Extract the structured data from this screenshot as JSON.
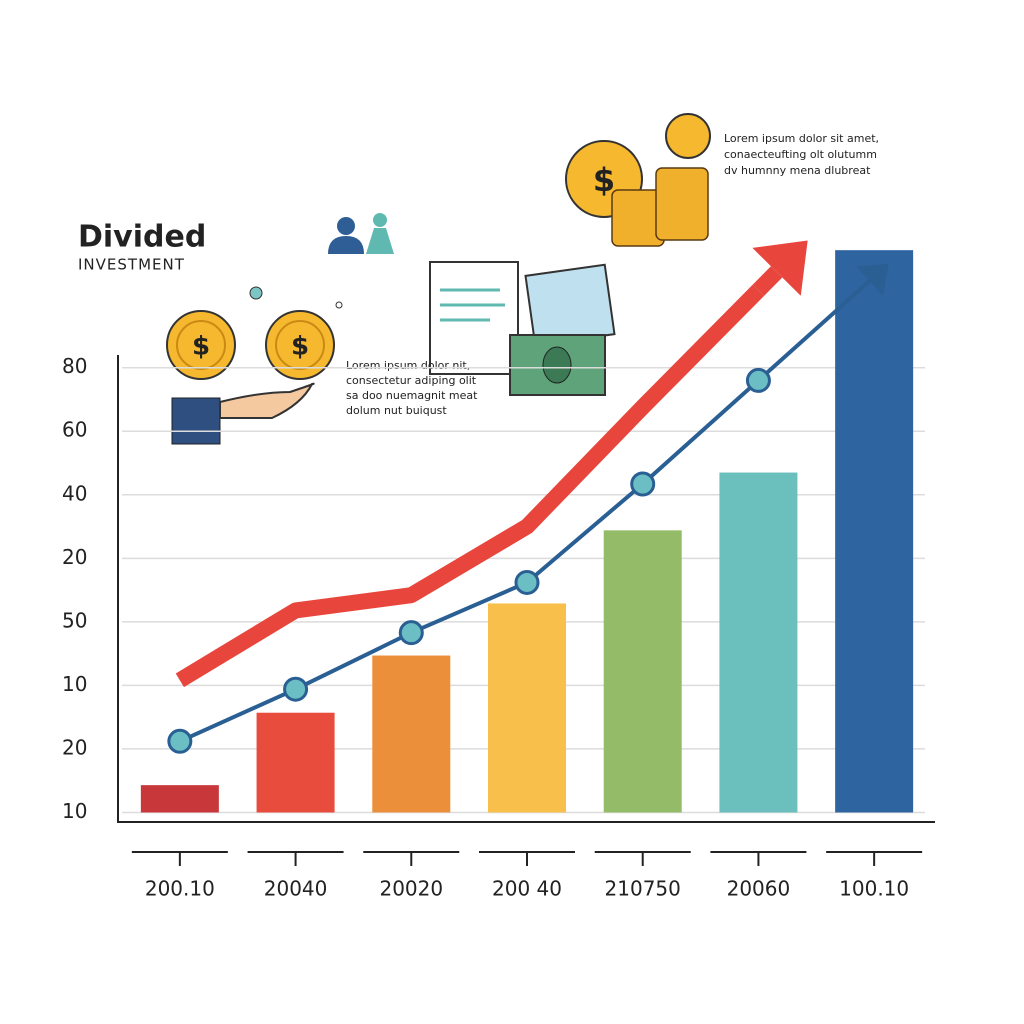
{
  "chart_data": {
    "type": "bar",
    "title": "Divided",
    "subtitle": "INVESTMENT",
    "annotations": [
      {
        "lines": [
          "Lorem ipsum dolor nit,",
          "consectetur adiping olit",
          "sa doo nuemagnit meat",
          "dolum nut buiqust"
        ]
      },
      {
        "lines": [
          "Lorem ipsum dolor sit amet,",
          "conaecteufting olt olutumm",
          "dv humnny mena dlubreat"
        ]
      }
    ],
    "categories": [
      "200.10",
      "20040",
      "20020",
      "200 40",
      "210750",
      "20060",
      "100.10"
    ],
    "values": [
      0.43,
      1.57,
      2.47,
      3.29,
      4.44,
      5.35,
      8.85
    ],
    "colors": [
      "#c8373a",
      "#e84c3d",
      "#ec8f3a",
      "#f8c04a",
      "#93bb68",
      "#6bbfbd",
      "#2e65a0"
    ],
    "lines": [
      {
        "color": "#e8453c",
        "values": [
          2.08,
          3.18,
          3.42,
          4.5,
          6.38,
          8.22,
          null
        ]
      },
      {
        "color": "#2a5f94",
        "values": [
          1.12,
          1.94,
          2.83,
          3.62,
          5.17,
          6.8,
          null
        ]
      }
    ],
    "ylim": [
      -0.15,
      7.2
    ],
    "yticks": [
      {
        "value": 0,
        "label": "10"
      },
      {
        "value": 1,
        "label": "20"
      },
      {
        "value": 2,
        "label": "10"
      },
      {
        "value": 3,
        "label": "50"
      },
      {
        "value": 4,
        "label": "20"
      },
      {
        "value": 5,
        "label": "40"
      },
      {
        "value": 6,
        "label": "60"
      },
      {
        "value": 7,
        "label": "80"
      }
    ],
    "grid": true
  }
}
